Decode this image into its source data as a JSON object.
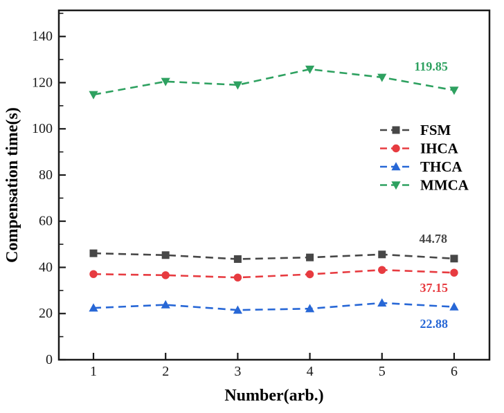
{
  "figure": {
    "background": "#ffffff",
    "frame_color": "#1a1a1a"
  },
  "chart_data": {
    "type": "line",
    "title": "",
    "xlabel": "Number(arb.)",
    "ylabel": "Compensation time(s)",
    "x": [
      1,
      2,
      3,
      4,
      5,
      6
    ],
    "xticks": [
      "1",
      "2",
      "3",
      "4",
      "5",
      "6"
    ],
    "yticks": [
      0,
      20,
      40,
      60,
      80,
      100,
      120,
      140
    ],
    "y_minor_step": 10,
    "xlim": [
      0.52,
      6.49
    ],
    "ylim": [
      0,
      151.3
    ],
    "grid": false,
    "line_style": "dashed",
    "legend_position": "middle-right",
    "series": [
      {
        "name": "FSM",
        "color": "#474747",
        "marker": "square",
        "values": [
          46.1,
          45.3,
          43.6,
          44.3,
          45.6,
          43.8
        ],
        "mean_annotation": {
          "text": "44.78",
          "x": 5.71,
          "y": 52.4
        }
      },
      {
        "name": "IHCA",
        "color": "#e73b40",
        "marker": "circle",
        "values": [
          37.1,
          36.6,
          35.6,
          37.0,
          38.9,
          37.7
        ],
        "mean_annotation": {
          "text": "37.15",
          "x": 5.72,
          "y": 31.2
        }
      },
      {
        "name": "THCA",
        "color": "#2767d6",
        "marker": "triangle-up",
        "values": [
          22.4,
          23.8,
          21.5,
          22.1,
          24.6,
          22.9
        ],
        "mean_annotation": {
          "text": "22.88",
          "x": 5.72,
          "y": 15.6
        }
      },
      {
        "name": "MMCA",
        "color": "#2ea160",
        "marker": "triangle-down",
        "values": [
          114.8,
          120.5,
          119.0,
          125.8,
          122.3,
          116.7
        ],
        "mean_annotation": {
          "text": "119.85",
          "x": 5.68,
          "y": 127.0
        }
      }
    ]
  }
}
